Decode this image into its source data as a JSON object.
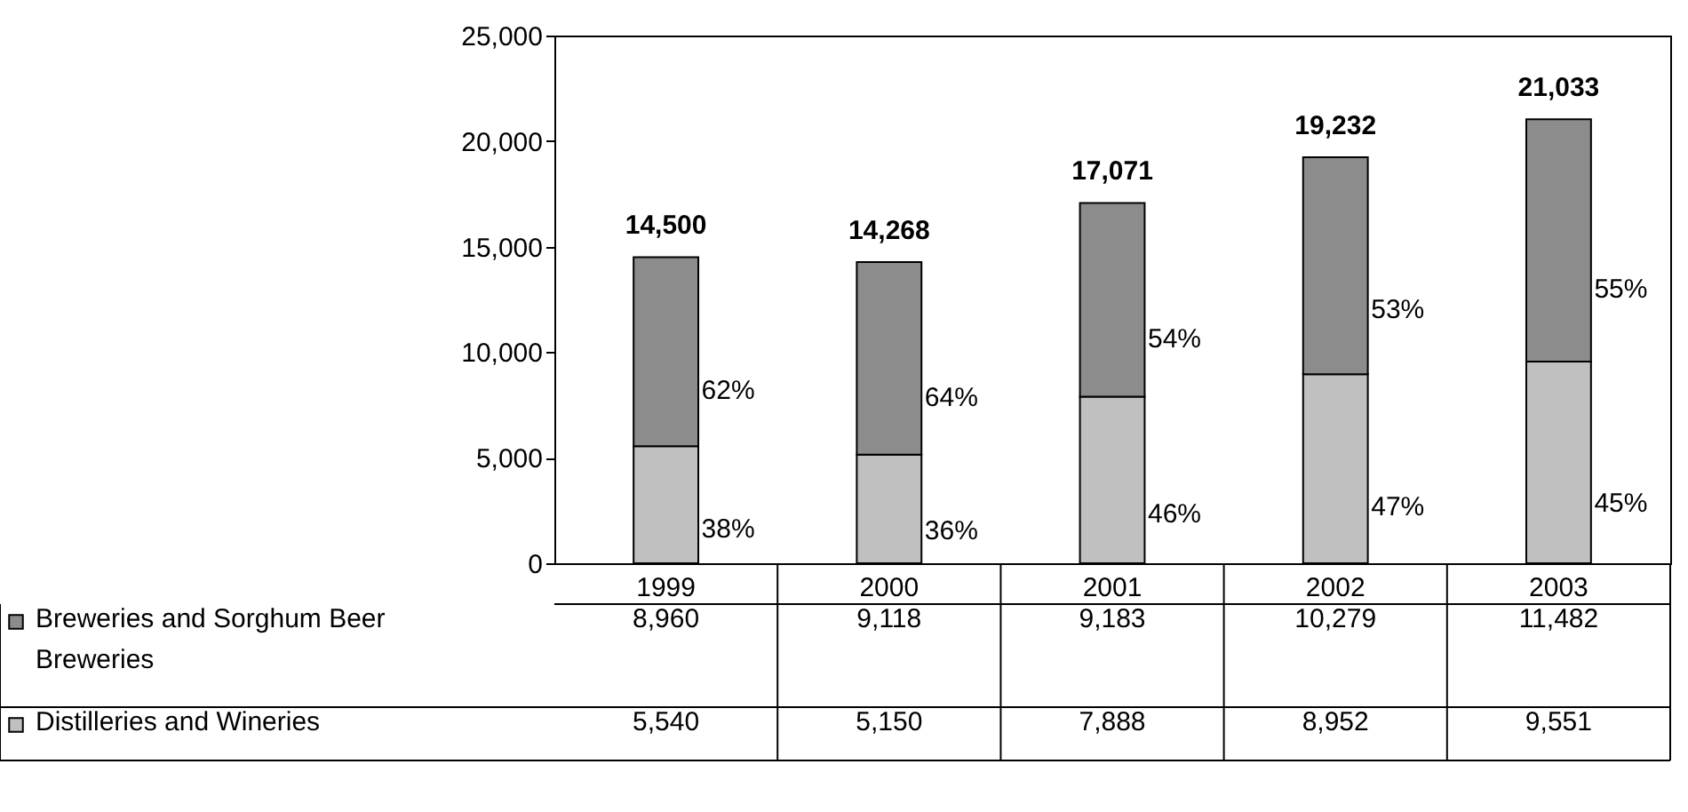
{
  "chart_data": {
    "type": "bar",
    "stacked": true,
    "categories": [
      "1999",
      "2000",
      "2001",
      "2002",
      "2003"
    ],
    "series": [
      {
        "name": "Distilleries and Wineries",
        "color": "#c0c0c0",
        "values": [
          5540,
          5150,
          7888,
          8952,
          9551
        ],
        "value_labels": [
          "5,540",
          "5,150",
          "7,888",
          "8,952",
          "9,551"
        ]
      },
      {
        "name": "Breweries and Sorghum Beer Breweries",
        "color": "#8c8c8c",
        "values": [
          8960,
          9118,
          9183,
          10279,
          11482
        ],
        "value_labels": [
          "8,960",
          "9,118",
          "9,183",
          "10,279",
          "11,482"
        ]
      }
    ],
    "totals": [
      "14,500",
      "14,268",
      "17,071",
      "19,232",
      "21,033"
    ],
    "annotations": [
      "38%",
      "62%",
      "36%",
      "64%",
      "46%",
      "54%",
      "47%",
      "53%",
      "45%",
      "55%"
    ],
    "ylim": [
      0,
      25000
    ],
    "yticks": [
      {
        "value": 0,
        "label": "0"
      },
      {
        "value": 5000,
        "label": "5,000"
      },
      {
        "value": 10000,
        "label": "10,000"
      },
      {
        "value": 15000,
        "label": "15,000"
      },
      {
        "value": 20000,
        "label": "20,000"
      },
      {
        "value": 25000,
        "label": "25,000"
      }
    ],
    "legend": "bottom left",
    "grid": false
  }
}
